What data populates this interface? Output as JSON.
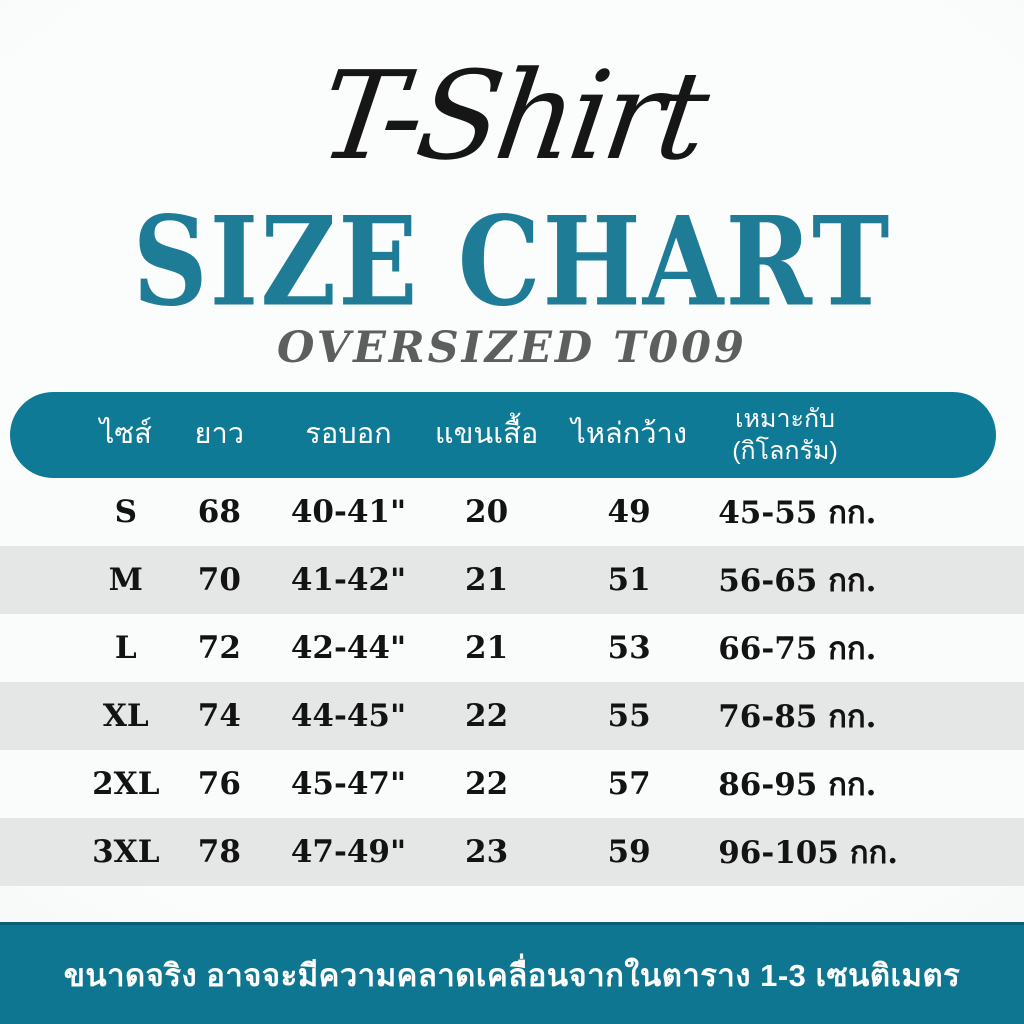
{
  "colors": {
    "accent_teal": "#0f7a96",
    "title_teal": "#1f7c96",
    "footer_teal": "#0e7691",
    "row_white": "#fafbfb",
    "row_gray": "#e5e6e6",
    "subtitle_gray": "#5d5f5f",
    "text_black": "#131313",
    "background": "#f6f7f7"
  },
  "header": {
    "script_title": "T-Shirt",
    "title": "SIZE CHART",
    "subtitle": "OVERSIZED T009"
  },
  "chart_data": {
    "type": "table",
    "title": "SIZE CHART",
    "subtitle": "OVERSIZED T009",
    "columns": [
      {
        "label": "ไซส์"
      },
      {
        "label": "ยาว"
      },
      {
        "label": "รอบอก"
      },
      {
        "label": "แขนเสื้อ"
      },
      {
        "label": "ไหล่กว้าง"
      },
      {
        "label": "เหมาะกับ",
        "sublabel": "(กิโลกรัม)"
      }
    ],
    "rows": [
      {
        "size": "S",
        "length": "68",
        "chest": "40-41\"",
        "sleeve": "20",
        "shoulder": "49",
        "weight": "45-55 กก."
      },
      {
        "size": "M",
        "length": "70",
        "chest": "41-42\"",
        "sleeve": "21",
        "shoulder": "51",
        "weight": "56-65 กก."
      },
      {
        "size": "L",
        "length": "72",
        "chest": "42-44\"",
        "sleeve": "21",
        "shoulder": "53",
        "weight": "66-75 กก."
      },
      {
        "size": "XL",
        "length": "74",
        "chest": "44-45\"",
        "sleeve": "22",
        "shoulder": "55",
        "weight": "76-85 กก."
      },
      {
        "size": "2XL",
        "length": "76",
        "chest": "45-47\"",
        "sleeve": "22",
        "shoulder": "57",
        "weight": "86-95 กก."
      },
      {
        "size": "3XL",
        "length": "78",
        "chest": "47-49\"",
        "sleeve": "23",
        "shoulder": "59",
        "weight": "96-105 กก."
      }
    ]
  },
  "footer": {
    "note": "ขนาดจริง อาจจะมีความคลาดเคลื่อนจากในตาราง 1-3 เซนติเมตร"
  }
}
